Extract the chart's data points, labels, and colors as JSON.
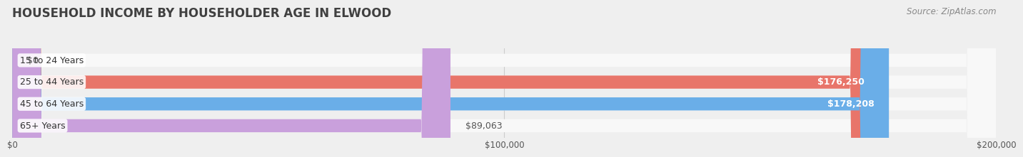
{
  "title": "HOUSEHOLD INCOME BY HOUSEHOLDER AGE IN ELWOOD",
  "source": "Source: ZipAtlas.com",
  "categories": [
    "15 to 24 Years",
    "25 to 44 Years",
    "45 to 64 Years",
    "65+ Years"
  ],
  "values": [
    0,
    176250,
    178208,
    89063
  ],
  "bar_colors": [
    "#f5c89a",
    "#e8756a",
    "#6aaee8",
    "#c9a0dc"
  ],
  "value_labels": [
    "$0",
    "$176,250",
    "$178,208",
    "$89,063"
  ],
  "xlim": [
    0,
    200000
  ],
  "xtick_values": [
    0,
    100000,
    200000
  ],
  "xtick_labels": [
    "$0",
    "$100,000",
    "$200,000"
  ],
  "background_color": "#efefef",
  "bar_background": "#f8f8f8",
  "title_color": "#404040",
  "source_color": "#888888",
  "label_fontsize": 9.0,
  "title_fontsize": 12,
  "source_fontsize": 8.5
}
